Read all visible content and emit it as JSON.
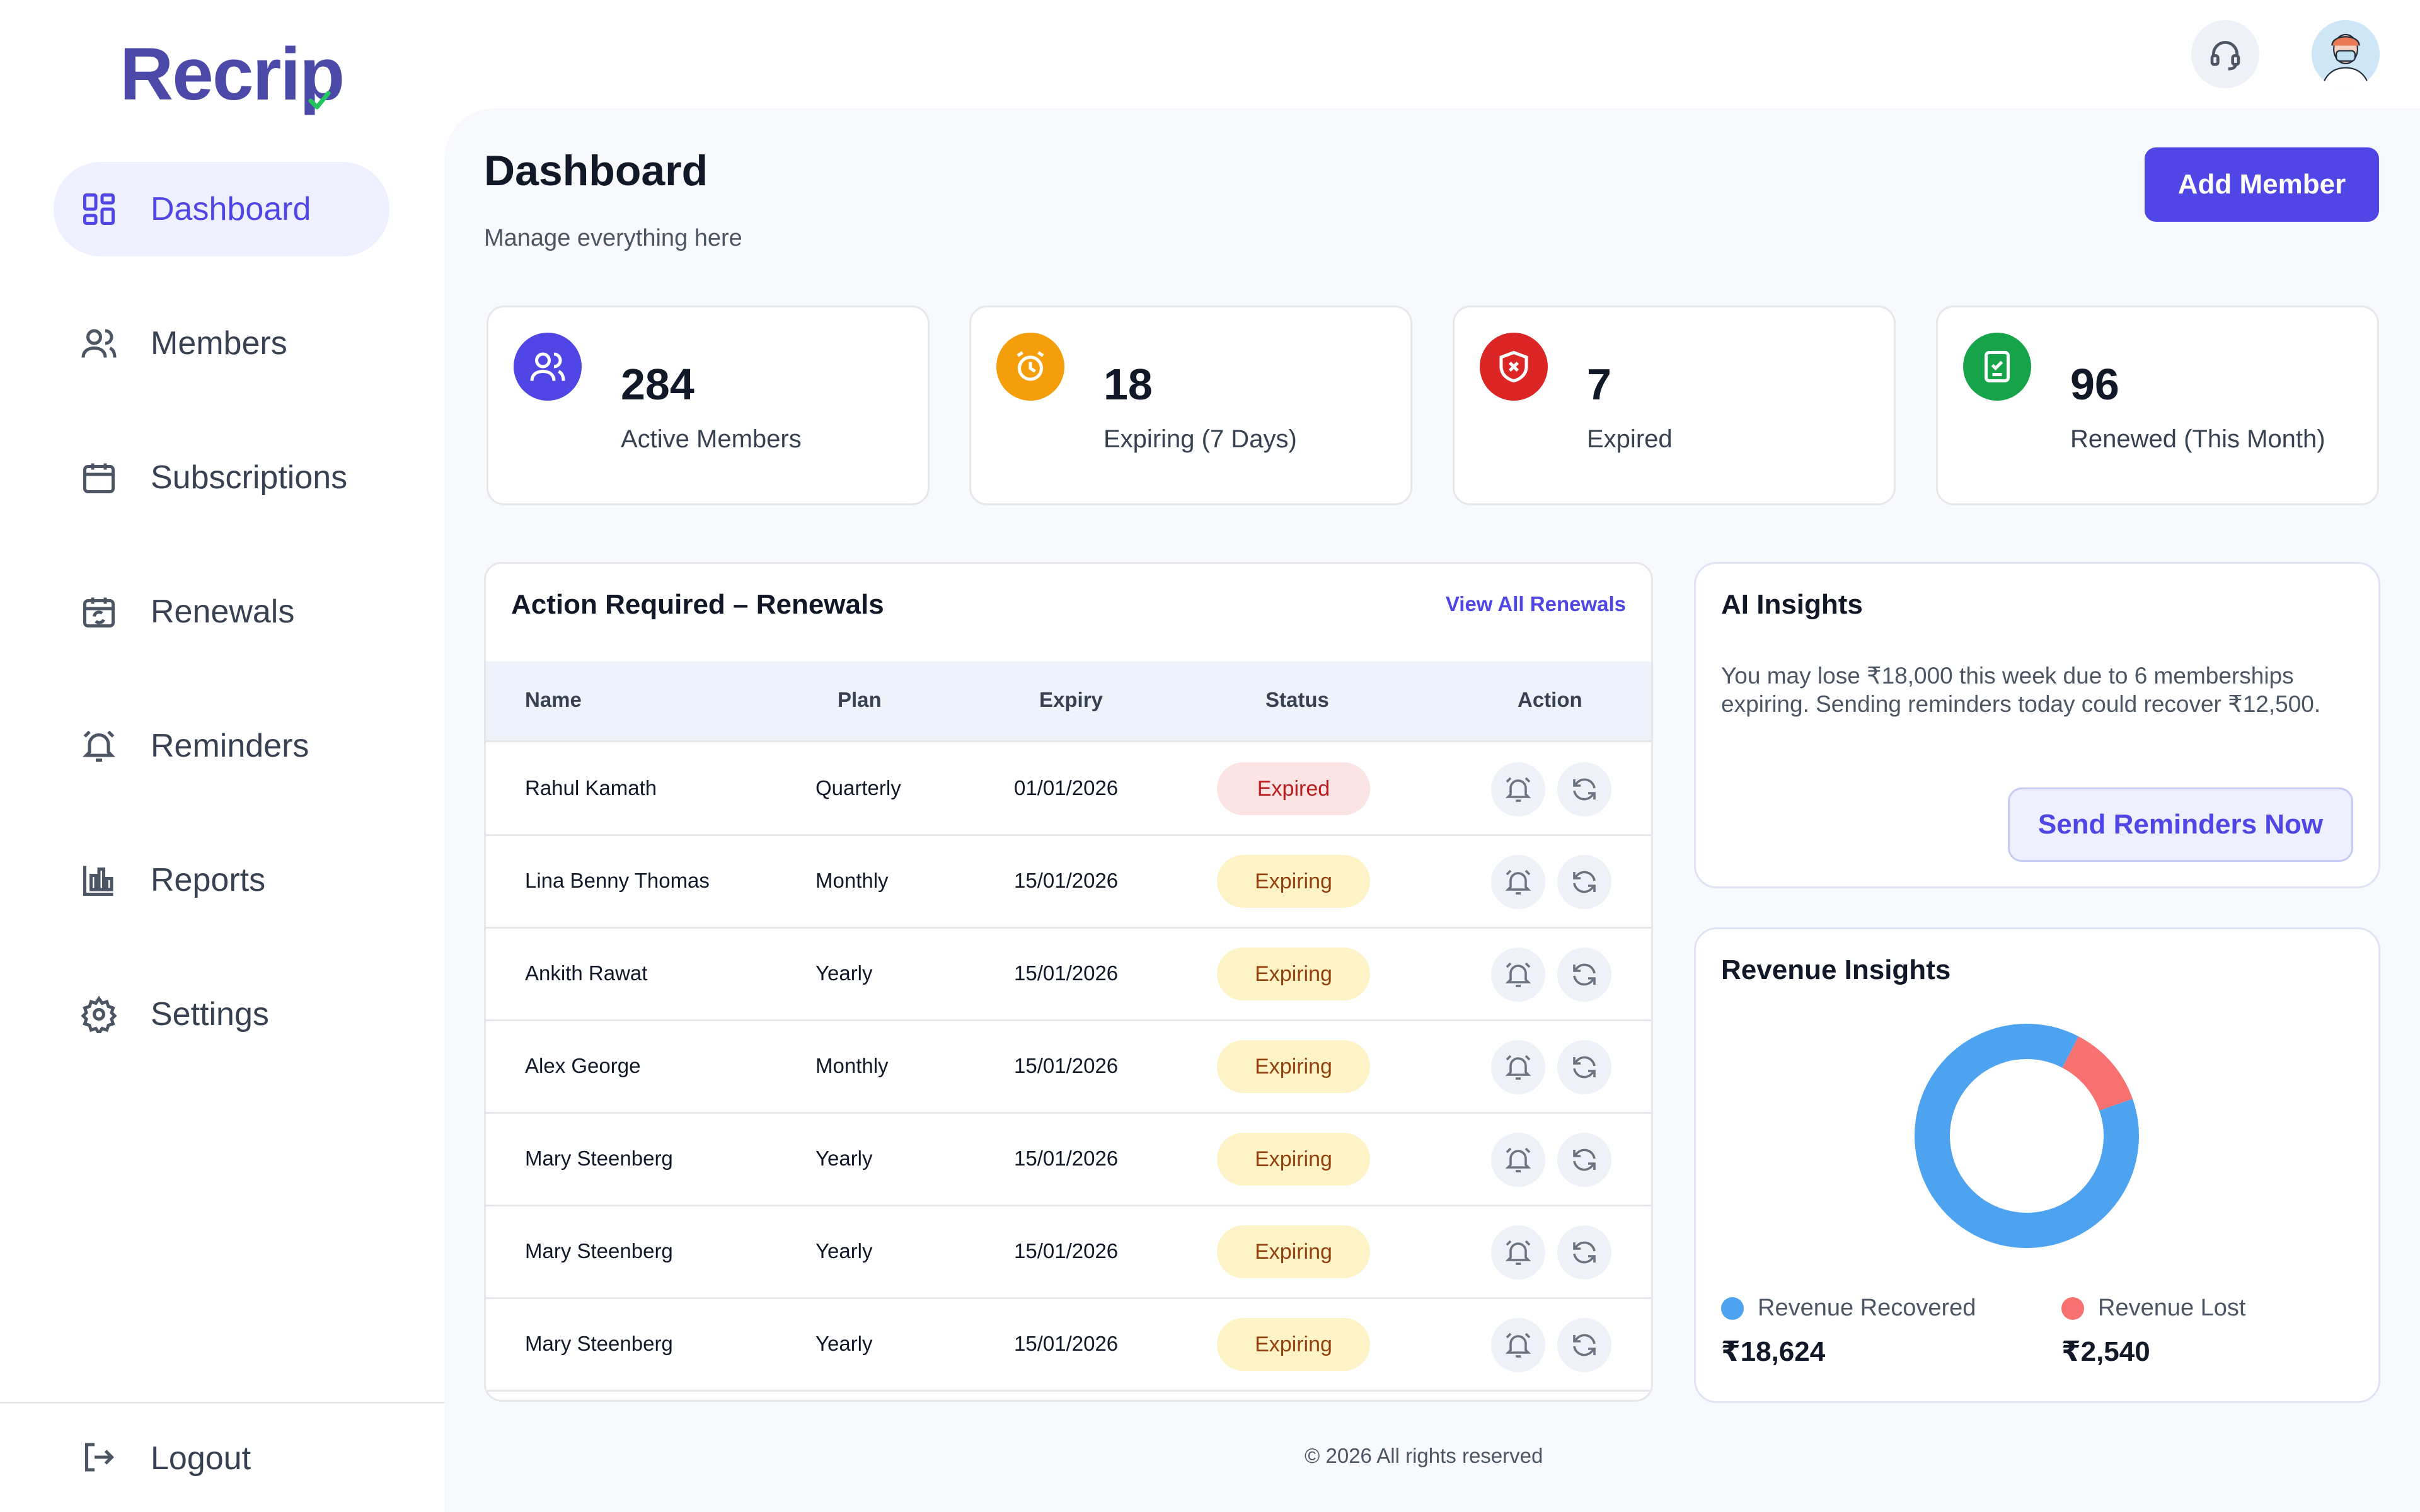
{
  "app": {
    "logo_text": "Recrip"
  },
  "sidebar": {
    "items": [
      {
        "label": "Dashboard",
        "icon": "grid-icon",
        "active": true
      },
      {
        "label": "Members",
        "icon": "users-icon",
        "active": false
      },
      {
        "label": "Subscriptions",
        "icon": "calendar-icon",
        "active": false
      },
      {
        "label": "Renewals",
        "icon": "calendar-refresh-icon",
        "active": false
      },
      {
        "label": "Reminders",
        "icon": "alarm-bell-icon",
        "active": false
      },
      {
        "label": "Reports",
        "icon": "bar-chart-icon",
        "active": false
      },
      {
        "label": "Settings",
        "icon": "gear-icon",
        "active": false
      }
    ],
    "logout_label": "Logout"
  },
  "header": {
    "support_icon": "headset-icon",
    "avatar_icon": "user-avatar"
  },
  "page": {
    "title": "Dashboard",
    "subtitle": "Manage everything here",
    "add_button": "Add Member"
  },
  "stats": [
    {
      "value": "284",
      "label": "Active Members",
      "icon": "users-icon",
      "color": "#4f46e5"
    },
    {
      "value": "18",
      "label": "Expiring (7 Days)",
      "icon": "alarm-clock-icon",
      "color": "#f59e0b"
    },
    {
      "value": "7",
      "label": "Expired",
      "icon": "shield-x-icon",
      "color": "#dc2626"
    },
    {
      "value": "96",
      "label": "Renewed (This Month)",
      "icon": "clipboard-check-icon",
      "color": "#16a34a"
    }
  ],
  "renewals": {
    "title": "Action Required – Renewals",
    "view_all": "View All Renewals",
    "columns": [
      "Name",
      "Plan",
      "Expiry",
      "Status",
      "Action"
    ],
    "rows": [
      {
        "name": "Rahul Kamath",
        "plan": "Quarterly",
        "expiry": "01/01/2026",
        "status": "Expired"
      },
      {
        "name": "Lina Benny Thomas",
        "plan": "Monthly",
        "expiry": "15/01/2026",
        "status": "Expiring"
      },
      {
        "name": "Ankith Rawat",
        "plan": "Yearly",
        "expiry": "15/01/2026",
        "status": "Expiring"
      },
      {
        "name": "Alex George",
        "plan": "Monthly",
        "expiry": "15/01/2026",
        "status": "Expiring"
      },
      {
        "name": "Mary Steenberg",
        "plan": "Yearly",
        "expiry": "15/01/2026",
        "status": "Expiring"
      },
      {
        "name": "Mary Steenberg",
        "plan": "Yearly",
        "expiry": "15/01/2026",
        "status": "Expiring"
      },
      {
        "name": "Mary Steenberg",
        "plan": "Yearly",
        "expiry": "15/01/2026",
        "status": "Expiring"
      }
    ]
  },
  "ai_insights": {
    "title": "AI Insights",
    "text": "You may lose ₹18,000 this week due to 6 memberships expiring. Sending reminders today could recover ₹12,500.",
    "button": "Send Reminders Now"
  },
  "revenue": {
    "title": "Revenue Insights",
    "recovered_label": "Revenue Recovered",
    "recovered_value": "₹18,624",
    "lost_label": "Revenue Lost",
    "lost_value": "₹2,540",
    "colors": {
      "recovered": "#4da3f0",
      "lost": "#f87171"
    }
  },
  "chart_data": {
    "type": "pie",
    "categories": [
      "Revenue Recovered",
      "Revenue Lost"
    ],
    "values": [
      18624,
      2540
    ]
  },
  "footer": {
    "text": "© 2026 All rights reserved"
  }
}
